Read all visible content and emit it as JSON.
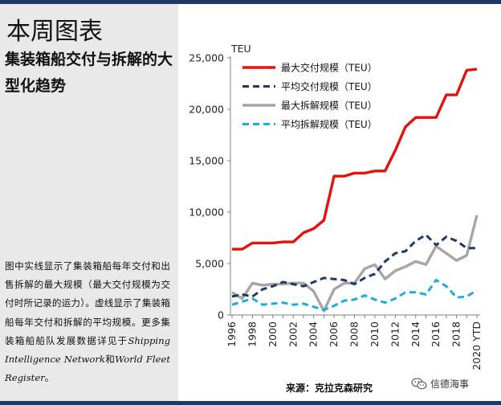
{
  "page": {
    "title": "本周图表",
    "subtitle": "集装箱船交付与拆解的大型化趋势",
    "description_main": "图中实线显示了集装箱船每年交付和出售拆解的最大规模（最大交付规模为交付时所记录的运力）。虚线显示了集装箱船每年交付和拆解的平均规模。更多集装箱船船队发展数据详见于",
    "description_link1": "Shipping Intelligence Network",
    "description_and": "和",
    "description_link2": "World Fleet Register",
    "description_end": "。",
    "source": "来源：克拉克森研究",
    "watermark": "信德海事"
  },
  "colors": {
    "header_bar": "#1f3864",
    "left_panel_bg": "#e9e9e9",
    "max_delivery": "#e3120b",
    "avg_delivery": "#1f3864",
    "max_demolition": "#a6a6a6",
    "avg_demolition": "#1cace3"
  },
  "chart_data": {
    "type": "line",
    "unit_label": "TEU",
    "x": [
      "1996",
      "1997",
      "1998",
      "1999",
      "2000",
      "2001",
      "2002",
      "2003",
      "2004",
      "2005",
      "2006",
      "2007",
      "2008",
      "2009",
      "2010",
      "2011",
      "2012",
      "2013",
      "2014",
      "2015",
      "2016",
      "2017",
      "2018",
      "2019",
      "2020 YTD"
    ],
    "x_tick_labels": [
      "1996",
      "1998",
      "2000",
      "2002",
      "2004",
      "2006",
      "2008",
      "2010",
      "2012",
      "2014",
      "2016",
      "2018",
      "2020 YTD"
    ],
    "ylim": [
      0,
      25000
    ],
    "y_ticks": [
      0,
      5000,
      10000,
      15000,
      20000,
      25000
    ],
    "y_tick_labels": [
      "0",
      "5,000",
      "10,000",
      "15,000",
      "20,000",
      "25,000"
    ],
    "grid": false,
    "legend_position": "top-left",
    "series": [
      {
        "name": "最大交付规模（TEU）",
        "color": "#e3120b",
        "dash": "solid",
        "values": [
          6400,
          6400,
          7000,
          7000,
          7000,
          7100,
          7100,
          8000,
          8400,
          9200,
          13500,
          13500,
          13800,
          13800,
          14000,
          14000,
          16000,
          18300,
          19200,
          19200,
          19200,
          21400,
          21400,
          23800,
          23900
        ]
      },
      {
        "name": "平均交付规模（TEU）",
        "color": "#1f3864",
        "dash": "dashed",
        "values": [
          1800,
          2000,
          1800,
          2500,
          2800,
          3200,
          3000,
          2800,
          3200,
          3600,
          3500,
          3400,
          3000,
          3600,
          4000,
          5200,
          6000,
          6200,
          7200,
          7800,
          6800,
          7600,
          7200,
          6500,
          6500
        ]
      },
      {
        "name": "最大拆解规模（TEU）",
        "color": "#a6a6a6",
        "dash": "solid",
        "values": [
          2200,
          1600,
          3100,
          2900,
          3000,
          3000,
          3100,
          3100,
          2300,
          400,
          2500,
          3100,
          3100,
          4500,
          4900,
          3500,
          4300,
          4700,
          5200,
          4900,
          6700,
          6000,
          5300,
          5800,
          9700
        ]
      },
      {
        "name": "平均拆解规模（TEU）",
        "color": "#1cace3",
        "dash": "dashed",
        "values": [
          1000,
          1300,
          1600,
          1000,
          1100,
          1200,
          1000,
          1100,
          800,
          500,
          900,
          1400,
          1500,
          1900,
          1500,
          1200,
          1600,
          2200,
          2200,
          2000,
          3400,
          2800,
          1700,
          1800,
          2400
        ]
      }
    ]
  }
}
